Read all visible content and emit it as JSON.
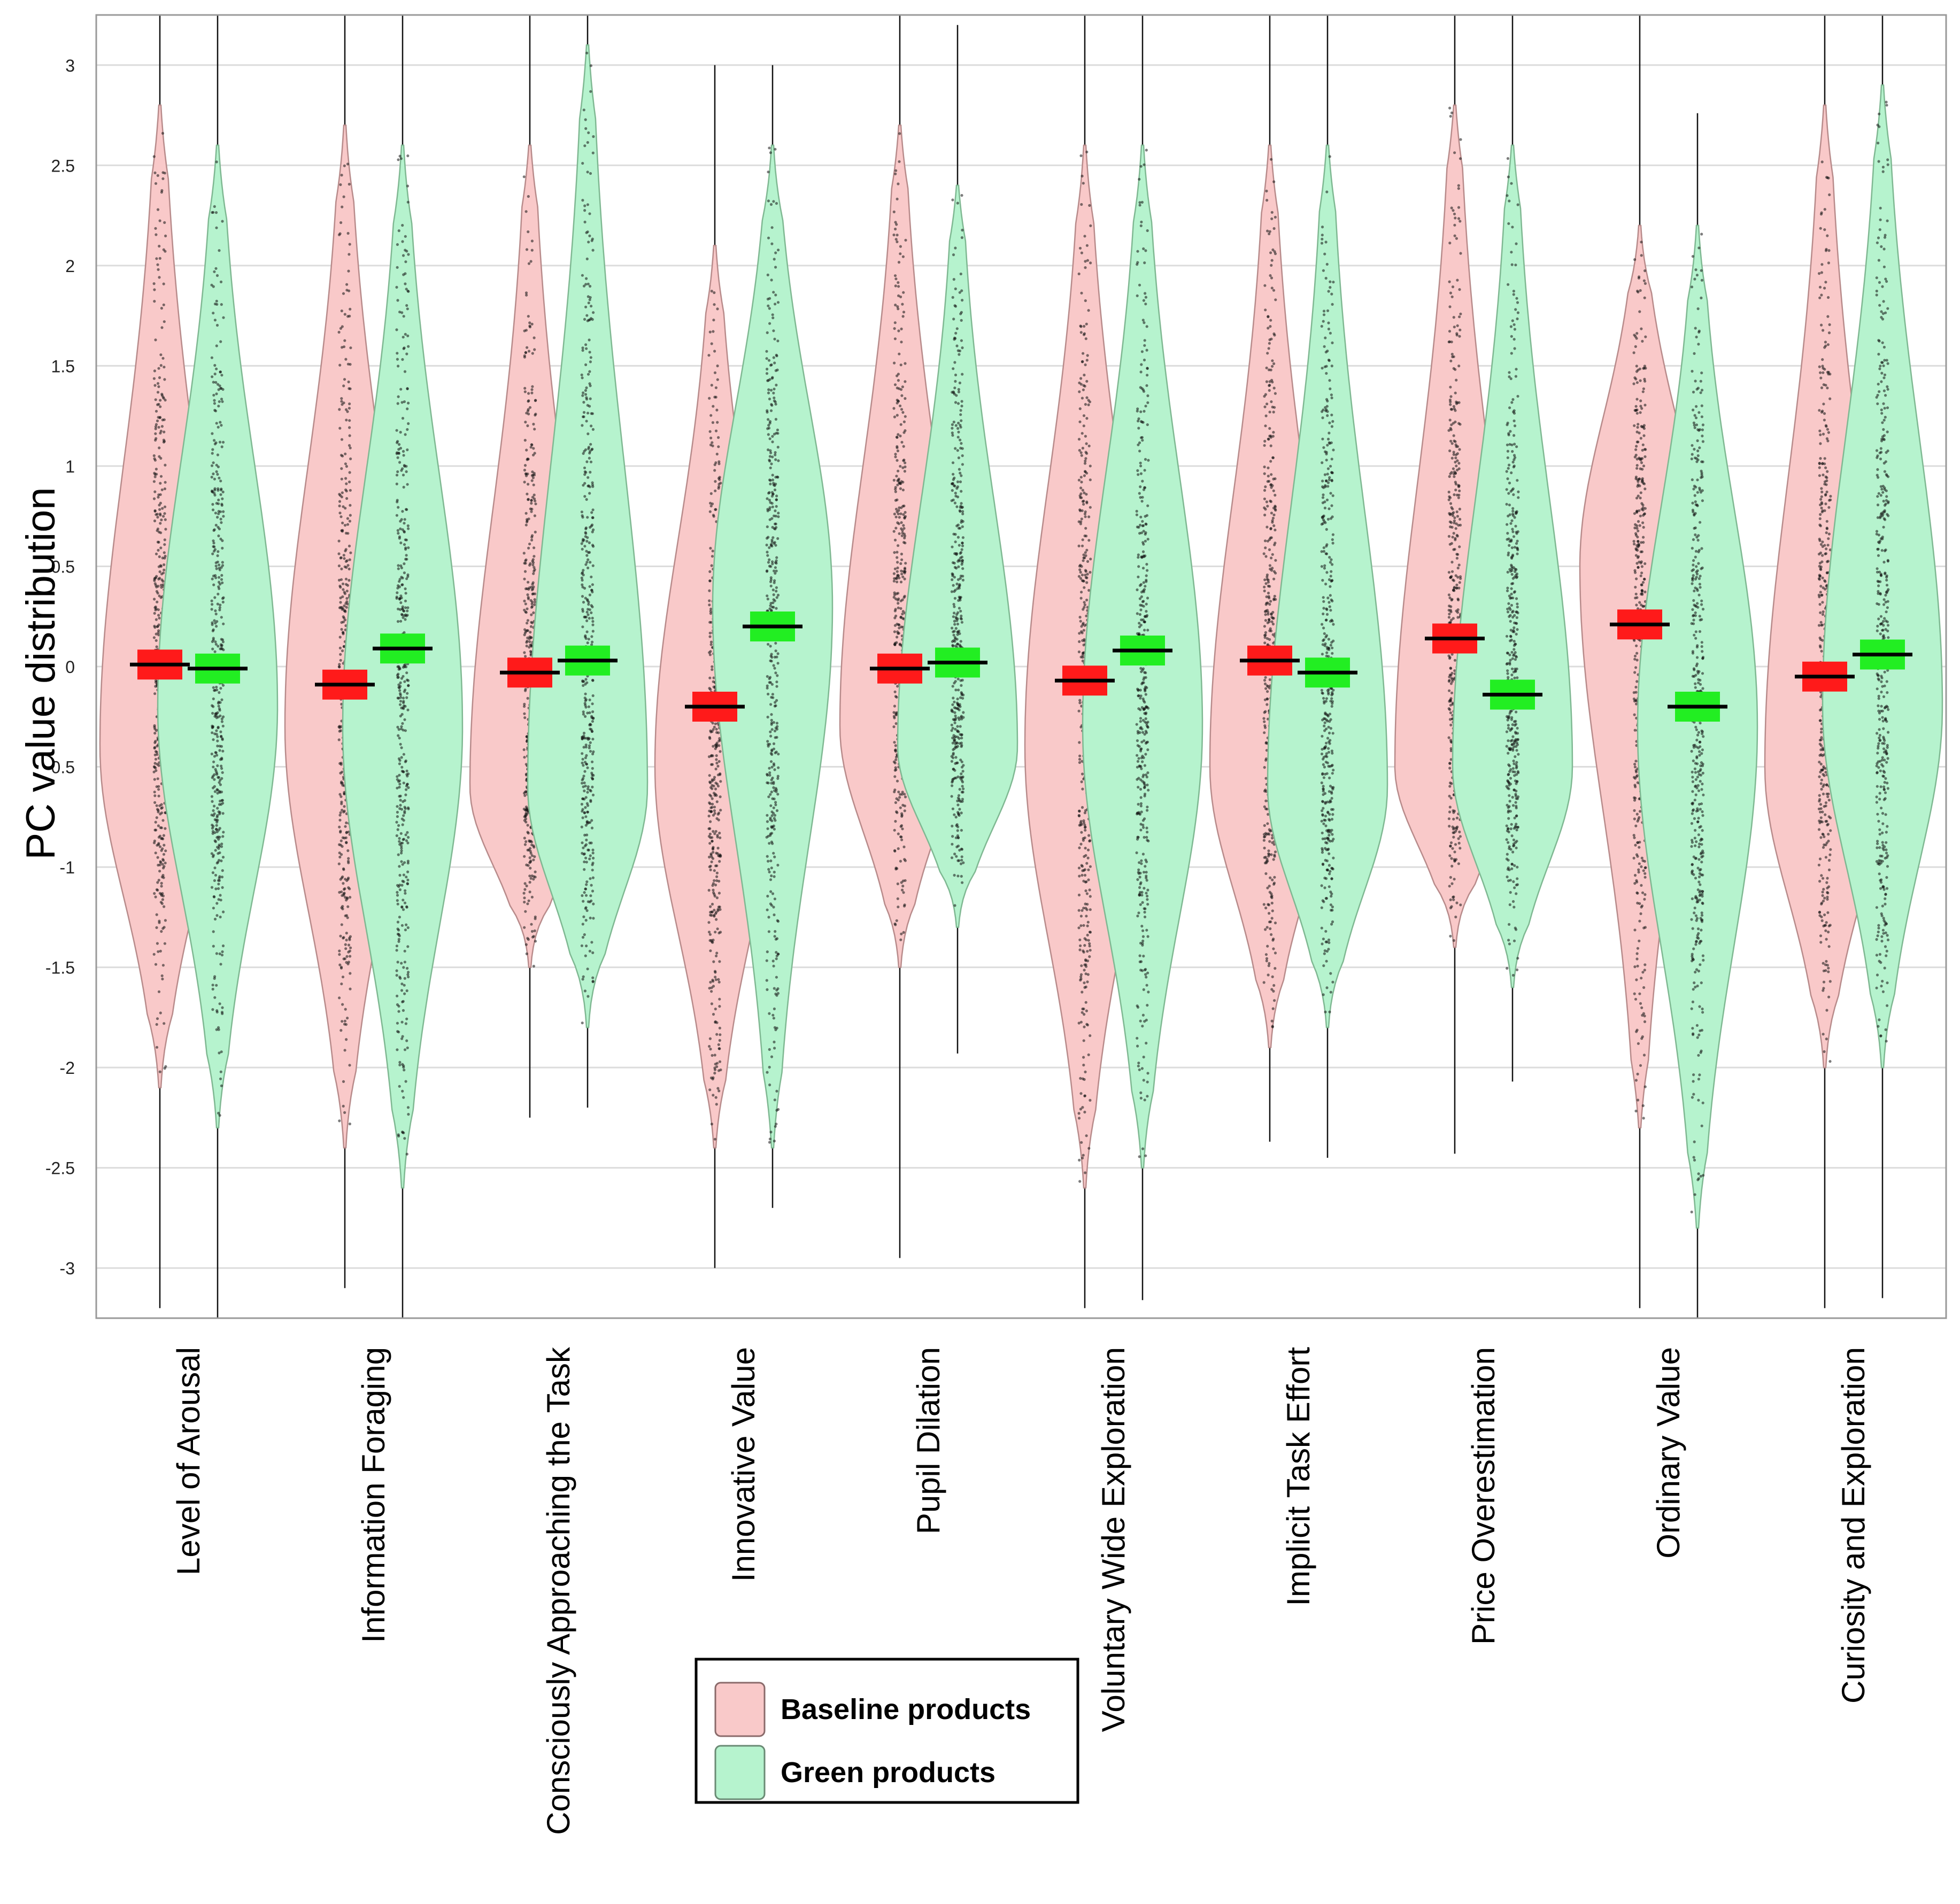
{
  "chart_data": {
    "type": "violin",
    "title": "",
    "xlabel": "",
    "ylabel": "PC value distribution",
    "ylim": [
      -3.25,
      3.25
    ],
    "yticks": [
      -3,
      -2.5,
      -2,
      -1.5,
      -1,
      -0.5,
      0,
      0.5,
      1,
      1.5,
      2,
      2.5,
      3
    ],
    "ytick_labels": [
      "-3",
      "-2.5",
      "-2",
      "-1.5",
      "-1",
      "-0.5",
      "0",
      "0.5",
      "1",
      "1.5",
      "2",
      "2.5",
      "3"
    ],
    "grid": true,
    "categories": [
      "Level of Arousal",
      "Information Foraging",
      "Consciously Approaching the Task",
      "Innovative Value",
      "Pupil Dilation",
      "Voluntary Wide Exploration",
      "Implicit Task Effort",
      "Price Overestimation",
      "Ordinary Value",
      "Curiosity and Exploration"
    ],
    "series": [
      {
        "name": "Baseline products",
        "fill_color": "#f9c9c9",
        "mean_color": "#ff1a1a",
        "means": [
          0.01,
          -0.09,
          -0.03,
          -0.2,
          -0.01,
          -0.07,
          0.03,
          0.14,
          0.21,
          -0.05
        ],
        "min": [
          -3.2,
          -3.1,
          -2.25,
          -3.0,
          -2.95,
          -3.2,
          -2.37,
          -2.43,
          -3.2,
          -3.2
        ],
        "max": [
          3.25,
          3.25,
          3.25,
          3.0,
          3.25,
          3.25,
          3.25,
          3.25,
          3.25,
          3.25
        ],
        "peak": [
          -0.4,
          -0.3,
          -0.6,
          -0.5,
          -0.3,
          -0.4,
          -0.5,
          -0.5,
          0.5,
          -0.5
        ],
        "lower_tail": [
          -2.1,
          -2.4,
          -1.5,
          -2.4,
          -1.5,
          -2.6,
          -1.9,
          -1.4,
          -2.3,
          -2.0
        ],
        "upper_tail": [
          2.8,
          2.7,
          2.6,
          2.1,
          2.7,
          2.6,
          2.6,
          2.8,
          2.2,
          2.8
        ]
      },
      {
        "name": "Green products",
        "fill_color": "#b6f3ce",
        "mean_color": "#22ee22",
        "means": [
          -0.01,
          0.09,
          0.03,
          0.2,
          0.02,
          0.08,
          -0.03,
          -0.14,
          -0.2,
          0.06
        ],
        "min": [
          -3.25,
          -3.25,
          -2.2,
          -2.7,
          -1.93,
          -3.16,
          -2.45,
          -2.07,
          -3.25,
          -3.15
        ],
        "max": [
          3.25,
          3.25,
          3.25,
          3.0,
          3.2,
          3.25,
          3.25,
          3.25,
          2.76,
          3.25
        ],
        "peak": [
          -0.2,
          -0.3,
          -0.6,
          0.3,
          -0.4,
          -0.3,
          -0.6,
          -0.5,
          -0.3,
          -0.2
        ],
        "lower_tail": [
          -2.3,
          -2.6,
          -1.8,
          -2.4,
          -1.3,
          -2.5,
          -1.8,
          -1.6,
          -2.8,
          -2.0
        ],
        "upper_tail": [
          2.6,
          2.6,
          3.1,
          2.6,
          2.4,
          2.6,
          2.6,
          2.6,
          2.2,
          2.9
        ]
      }
    ],
    "legend": {
      "position": "bottom-center",
      "entries": [
        "Baseline products",
        "Green products"
      ]
    }
  }
}
